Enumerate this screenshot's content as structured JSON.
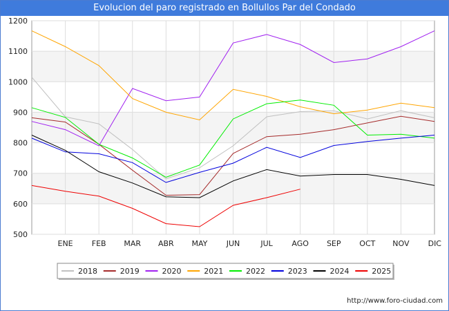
{
  "chart_data": {
    "type": "line",
    "title": "Evolucion del paro registrado en Bollullos Par del Condado",
    "categories": [
      "",
      "ENE",
      "FEB",
      "MAR",
      "ABR",
      "MAY",
      "JUN",
      "JUL",
      "AGO",
      "SEP",
      "OCT",
      "NOV",
      "DIC"
    ],
    "ylim": [
      500,
      1200
    ],
    "yticks": [
      500,
      600,
      700,
      800,
      900,
      1000,
      1100,
      1200
    ],
    "grid": true,
    "legend_position": "bottom",
    "series": [
      {
        "name": "2018",
        "color": "#c0c0c0",
        "values": [
          1015,
          885,
          862,
          778,
          682,
          718,
          790,
          885,
          902,
          905,
          878,
          905,
          882
        ]
      },
      {
        "name": "2019",
        "color": "#a52a2a",
        "values": [
          882,
          868,
          795,
          710,
          628,
          630,
          765,
          820,
          828,
          843,
          865,
          887,
          870
        ]
      },
      {
        "name": "2020",
        "color": "#a020f0",
        "values": [
          870,
          843,
          790,
          978,
          938,
          950,
          1127,
          1155,
          1122,
          1063,
          1075,
          1115,
          1167
        ]
      },
      {
        "name": "2021",
        "color": "#ffa500",
        "values": [
          1167,
          1115,
          1053,
          945,
          900,
          875,
          975,
          952,
          918,
          895,
          907,
          930,
          915
        ]
      },
      {
        "name": "2022",
        "color": "#00ee00",
        "values": [
          915,
          883,
          795,
          750,
          687,
          727,
          878,
          928,
          940,
          923,
          825,
          828,
          815
        ]
      },
      {
        "name": "2023",
        "color": "#0000dd",
        "values": [
          815,
          770,
          764,
          735,
          670,
          703,
          733,
          785,
          752,
          791,
          804,
          815,
          825
        ]
      },
      {
        "name": "2024",
        "color": "#000000",
        "values": [
          825,
          775,
          705,
          668,
          623,
          620,
          675,
          712,
          691,
          696,
          696,
          680,
          660
        ]
      },
      {
        "name": "2025",
        "color": "#ee0000",
        "values": [
          660,
          641,
          625,
          585,
          535,
          525,
          595,
          620,
          648,
          null,
          null,
          null,
          null
        ]
      }
    ]
  },
  "footer": {
    "url": "http://www.foro-ciudad.com"
  }
}
